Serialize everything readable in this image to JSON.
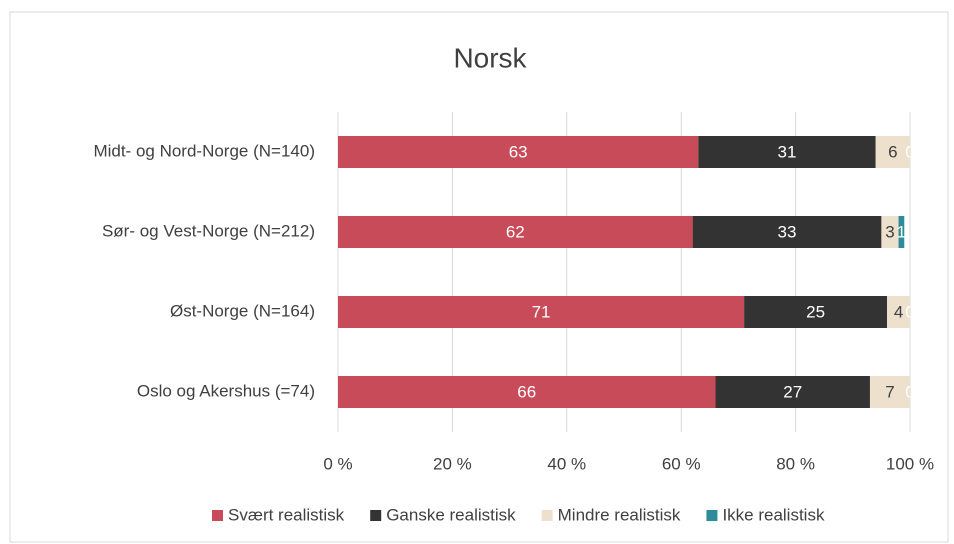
{
  "chart_data": {
    "type": "stacked-bar-horizontal",
    "title": "Norsk",
    "categories": [
      "Midt- og Nord-Norge (N=140)",
      "Sør- og Vest-Norge (N=212)",
      "Øst-Norge (N=164)",
      "Oslo og Akershus (=74)"
    ],
    "series": [
      {
        "name": "Svært realistisk",
        "color": "#c84b5a",
        "label_color": "#ffffff",
        "values": [
          63,
          62,
          71,
          66
        ]
      },
      {
        "name": "Ganske realistisk",
        "color": "#333333",
        "label_color": "#ffffff",
        "values": [
          31,
          33,
          25,
          27
        ]
      },
      {
        "name": "Mindre realistisk",
        "color": "#ede0cc",
        "label_color": "#404040",
        "values": [
          6,
          3,
          4,
          7
        ]
      },
      {
        "name": "Ikke realistisk",
        "color": "#2e8b9a",
        "label_color": "#ffffff",
        "values": [
          0,
          1,
          0,
          0
        ]
      }
    ],
    "xlim": [
      0,
      100
    ],
    "xticks": [
      {
        "value": 0,
        "label": "0 %"
      },
      {
        "value": 20,
        "label": "20 %"
      },
      {
        "value": 40,
        "label": "40 %"
      },
      {
        "value": 60,
        "label": "60 %"
      },
      {
        "value": 80,
        "label": "80 %"
      },
      {
        "value": 100,
        "label": "100 %"
      }
    ],
    "grid": true,
    "legend": "bottom"
  }
}
